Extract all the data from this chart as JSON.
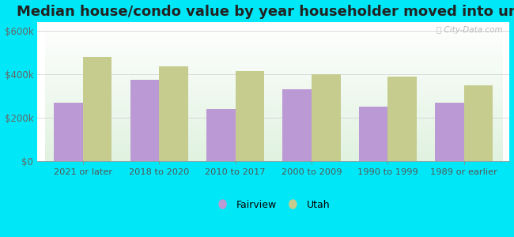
{
  "title": "Median house/condo value by year householder moved into unit",
  "categories": [
    "2021 or later",
    "2018 to 2020",
    "2010 to 2017",
    "2000 to 2009",
    "1990 to 1999",
    "1989 or earlier"
  ],
  "fairview_values": [
    270000,
    375000,
    240000,
    330000,
    250000,
    270000
  ],
  "utah_values": [
    480000,
    435000,
    415000,
    400000,
    390000,
    350000
  ],
  "fairview_color": "#bb99d4",
  "utah_color": "#c5cc8e",
  "background_outer": "#00e8f8",
  "yticks": [
    0,
    200000,
    400000,
    600000
  ],
  "ytick_labels": [
    "$0",
    "$200k",
    "$400k",
    "$600k"
  ],
  "ylim": [
    0,
    640000
  ],
  "bar_width": 0.38,
  "title_fontsize": 13,
  "legend_labels": [
    "Fairview",
    "Utah"
  ],
  "watermark": "City-Data.com"
}
